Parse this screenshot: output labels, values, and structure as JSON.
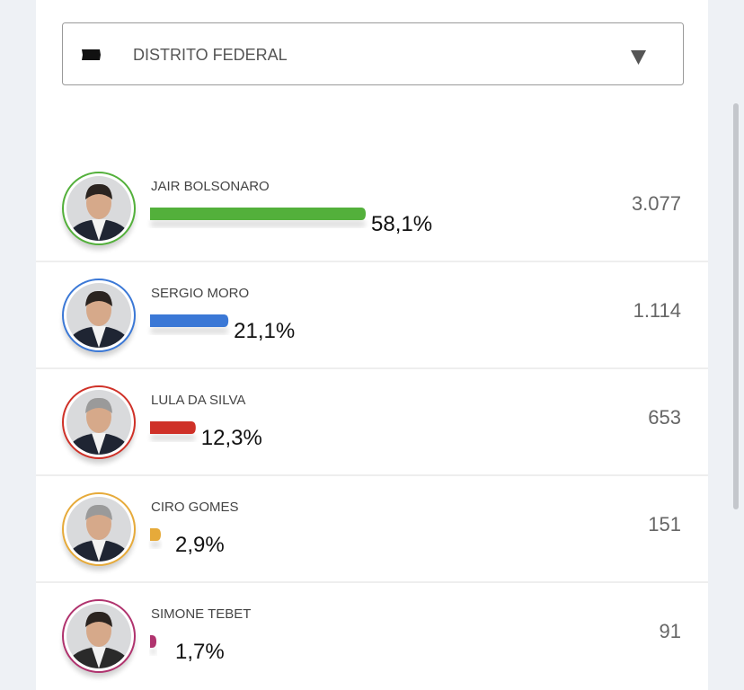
{
  "dropdown": {
    "label": "DISTRITO FEDERAL"
  },
  "candidates": [
    {
      "name": "JAIR BOLSONARO",
      "share": 58.1,
      "share_label": "58,1%",
      "votes": "3.077",
      "color": "#53b03b"
    },
    {
      "name": "SERGIO MORO",
      "share": 21.1,
      "share_label": "21,1%",
      "votes": "1.114",
      "color": "#3b78d6"
    },
    {
      "name": "LULA DA SILVA",
      "share": 12.3,
      "share_label": "12,3%",
      "votes": "653",
      "color": "#cf3128"
    },
    {
      "name": "CIRO GOMES",
      "share": 2.9,
      "share_label": "2,9%",
      "votes": "151",
      "color": "#e6aa3a"
    },
    {
      "name": "SIMONE TEBET",
      "share": 1.7,
      "share_label": "1,7%",
      "votes": "91",
      "color": "#b0336e"
    }
  ]
}
